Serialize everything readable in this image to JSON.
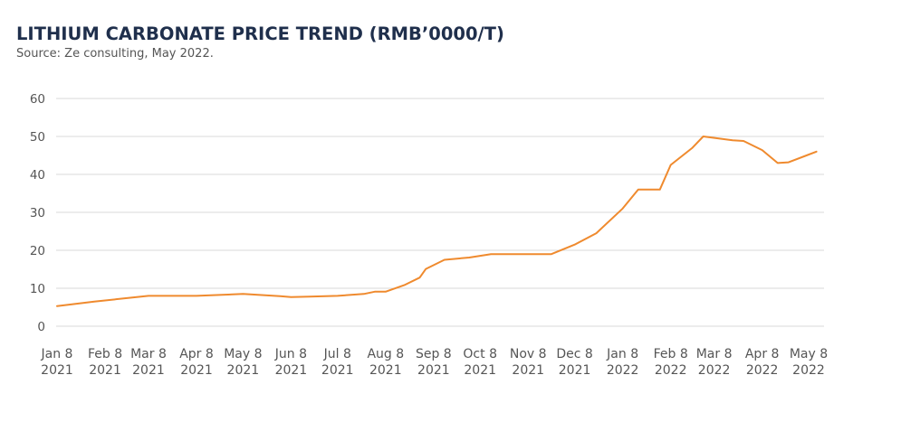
{
  "chart_data": {
    "type": "line",
    "title": "LITHIUM CARBONATE PRICE TREND (RMB’0000/T)",
    "subtitle": "Source: Ze consulting, May 2022.",
    "xlabel": "",
    "ylabel": "",
    "ylim": [
      0,
      60
    ],
    "yticks": [
      0,
      10,
      20,
      30,
      40,
      50,
      60
    ],
    "grid": true,
    "legend": "none",
    "color": "#ef8a2e",
    "xlim": [
      "2021-01-08",
      "2022-05-15"
    ],
    "xticks": [
      {
        "date": "2021-01-08",
        "label": [
          "Jan 8",
          "2021"
        ]
      },
      {
        "date": "2021-02-08",
        "label": [
          "Feb 8",
          "2021"
        ]
      },
      {
        "date": "2021-03-08",
        "label": [
          "Mar 8",
          "2021"
        ]
      },
      {
        "date": "2021-04-08",
        "label": [
          "Apr 8",
          "2021"
        ]
      },
      {
        "date": "2021-05-08",
        "label": [
          "May 8",
          "2021"
        ]
      },
      {
        "date": "2021-06-08",
        "label": [
          "Jun 8",
          "2021"
        ]
      },
      {
        "date": "2021-07-08",
        "label": [
          "Jul 8",
          "2021"
        ]
      },
      {
        "date": "2021-08-08",
        "label": [
          "Aug 8",
          "2021"
        ]
      },
      {
        "date": "2021-09-08",
        "label": [
          "Sep 8",
          "2021"
        ]
      },
      {
        "date": "2021-10-08",
        "label": [
          "Oct 8",
          "2021"
        ]
      },
      {
        "date": "2021-11-08",
        "label": [
          "Nov 8",
          "2021"
        ]
      },
      {
        "date": "2021-12-08",
        "label": [
          "Dec 8",
          "2021"
        ]
      },
      {
        "date": "2022-01-08",
        "label": [
          "Jan 8",
          "2022"
        ]
      },
      {
        "date": "2022-02-08",
        "label": [
          "Feb 8",
          "2022"
        ]
      },
      {
        "date": "2022-03-08",
        "label": [
          "Mar 8",
          "2022"
        ]
      },
      {
        "date": "2022-04-08",
        "label": [
          "Apr 8",
          "2022"
        ]
      },
      {
        "date": "2022-05-08",
        "label": [
          "May 8",
          "2022"
        ]
      }
    ],
    "series": [
      {
        "points": [
          [
            "2021-01-08",
            5.3
          ],
          [
            "2021-02-01",
            6.5
          ],
          [
            "2021-02-20",
            7.3
          ],
          [
            "2021-03-08",
            8.0
          ],
          [
            "2021-03-20",
            8.0
          ],
          [
            "2021-04-08",
            8.0
          ],
          [
            "2021-05-08",
            8.5
          ],
          [
            "2021-06-01",
            7.9
          ],
          [
            "2021-06-08",
            7.7
          ],
          [
            "2021-06-20",
            7.8
          ],
          [
            "2021-07-08",
            8.0
          ],
          [
            "2021-07-25",
            8.5
          ],
          [
            "2021-08-01",
            9.1
          ],
          [
            "2021-08-08",
            9.1
          ],
          [
            "2021-08-20",
            10.8
          ],
          [
            "2021-08-30",
            12.8
          ],
          [
            "2021-09-03",
            15.1
          ],
          [
            "2021-09-15",
            17.5
          ],
          [
            "2021-10-01",
            18.1
          ],
          [
            "2021-10-15",
            19.0
          ],
          [
            "2021-11-08",
            19.0
          ],
          [
            "2021-11-23",
            19.0
          ],
          [
            "2021-12-08",
            21.5
          ],
          [
            "2021-12-22",
            24.5
          ],
          [
            "2022-01-08",
            31.0
          ],
          [
            "2022-01-18",
            36.0
          ],
          [
            "2022-02-01",
            36.0
          ],
          [
            "2022-02-08",
            42.5
          ],
          [
            "2022-02-22",
            47.0
          ],
          [
            "2022-03-01",
            50.0
          ],
          [
            "2022-03-20",
            49.0
          ],
          [
            "2022-03-27",
            48.8
          ],
          [
            "2022-04-08",
            46.4
          ],
          [
            "2022-04-18",
            43.0
          ],
          [
            "2022-04-25",
            43.2
          ],
          [
            "2022-05-13",
            46.0
          ]
        ]
      }
    ]
  }
}
